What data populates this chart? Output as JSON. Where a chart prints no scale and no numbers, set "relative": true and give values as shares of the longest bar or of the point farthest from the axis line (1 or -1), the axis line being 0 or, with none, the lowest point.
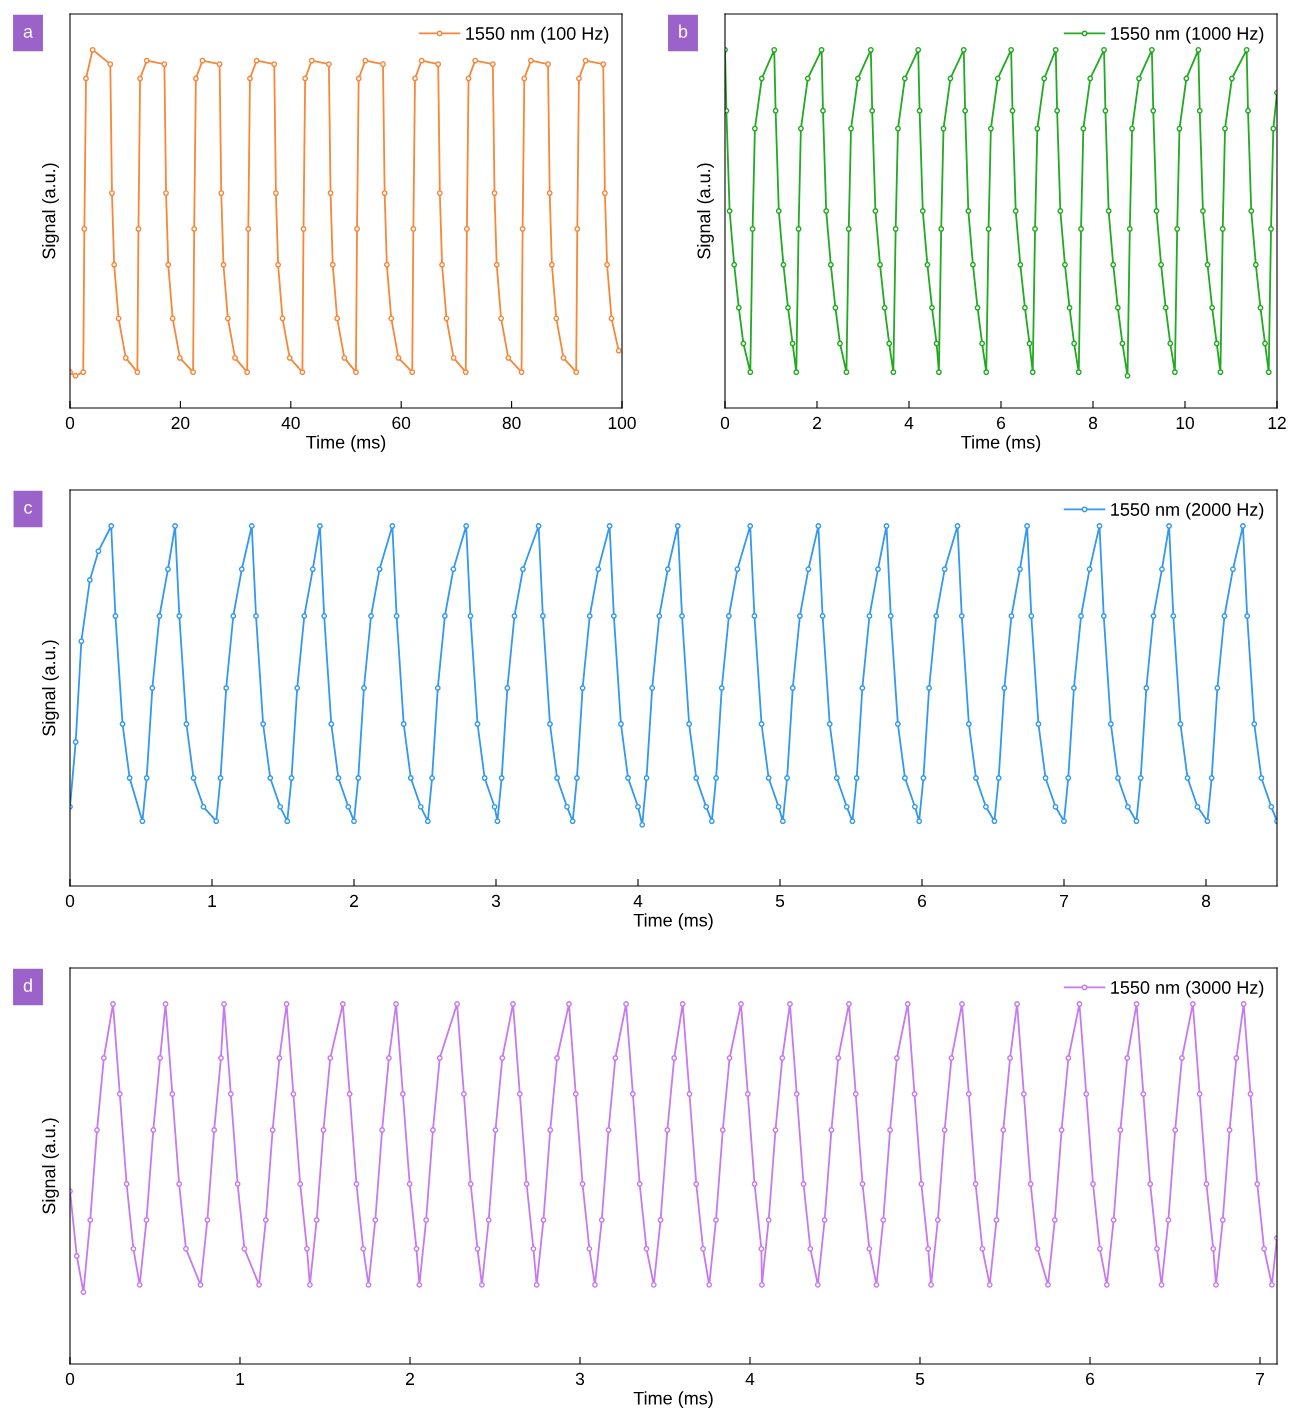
{
  "chart_data": [
    {
      "type": "line",
      "annotations": [
        "a"
      ],
      "xlabel": "Time (ms)",
      "ylabel": "Signal (a.u.)",
      "relative": true,
      "xlim": [
        0,
        100
      ],
      "xticks": [
        0,
        20,
        40,
        60,
        80,
        100
      ],
      "legend": "top right",
      "marker": "circle",
      "line_style": "solid",
      "grid": false,
      "series": [
        {
          "name": "1550 nm (100 Hz)",
          "color": "#f5883a",
          "x": [
            0,
            1,
            2.4,
            2.6,
            2.9,
            4.1,
            7.3,
            7.6,
            8.0,
            8.8,
            10.1,
            12.2,
            12.4,
            12.7,
            13.9,
            17.1,
            17.4,
            17.8,
            18.6,
            19.9,
            22.3,
            22.5,
            22.8,
            24.0,
            27.1,
            27.4,
            27.8,
            28.6,
            29.9,
            32.1,
            32.3,
            32.6,
            33.8,
            37.0,
            37.3,
            37.7,
            38.5,
            39.8,
            42.1,
            42.3,
            42.6,
            43.8,
            46.9,
            47.2,
            47.6,
            48.4,
            49.7,
            51.8,
            52.0,
            52.3,
            53.5,
            56.7,
            57.0,
            57.4,
            58.2,
            59.5,
            62.0,
            62.2,
            62.5,
            63.7,
            66.7,
            67.0,
            67.4,
            68.2,
            69.5,
            71.7,
            71.9,
            72.2,
            73.4,
            76.6,
            76.9,
            77.3,
            78.1,
            79.4,
            81.8,
            82.0,
            82.3,
            83.5,
            86.6,
            86.9,
            87.3,
            88.1,
            89.4,
            91.7,
            91.9,
            92.2,
            93.4,
            96.6,
            96.9,
            97.3,
            98.1,
            99.4
          ],
          "values": [
            0.1,
            0.09,
            0.1,
            0.5,
            0.92,
            1.0,
            0.96,
            0.6,
            0.4,
            0.25,
            0.14,
            0.1,
            0.5,
            0.92,
            0.97,
            0.96,
            0.6,
            0.4,
            0.25,
            0.14,
            0.1,
            0.5,
            0.92,
            0.97,
            0.96,
            0.6,
            0.4,
            0.25,
            0.14,
            0.1,
            0.5,
            0.92,
            0.97,
            0.96,
            0.6,
            0.4,
            0.25,
            0.14,
            0.1,
            0.5,
            0.92,
            0.97,
            0.96,
            0.6,
            0.4,
            0.25,
            0.14,
            0.1,
            0.5,
            0.92,
            0.97,
            0.96,
            0.6,
            0.4,
            0.25,
            0.14,
            0.1,
            0.5,
            0.92,
            0.97,
            0.96,
            0.6,
            0.4,
            0.25,
            0.14,
            0.1,
            0.5,
            0.92,
            0.97,
            0.96,
            0.6,
            0.4,
            0.25,
            0.14,
            0.1,
            0.5,
            0.92,
            0.97,
            0.96,
            0.6,
            0.4,
            0.25,
            0.14,
            0.1,
            0.5,
            0.92,
            0.97,
            0.96,
            0.6,
            0.4,
            0.25,
            0.16
          ]
        }
      ]
    },
    {
      "type": "line",
      "annotations": [
        "b"
      ],
      "xlabel": "Time (ms)",
      "ylabel": "Signal (a.u.)",
      "relative": true,
      "xlim": [
        0,
        12
      ],
      "xticks": [
        0,
        2,
        4,
        6,
        8,
        10,
        12
      ],
      "legend": "top right",
      "marker": "circle",
      "line_style": "solid",
      "grid": false,
      "series": [
        {
          "name": "1550 nm (1000 Hz)",
          "color": "#22aa22",
          "x": [
            0,
            0.03,
            0.1,
            0.2,
            0.3,
            0.4,
            0.55,
            0.6,
            0.65,
            0.8,
            1.07,
            1.1,
            1.17,
            1.27,
            1.37,
            1.47,
            1.55,
            1.6,
            1.65,
            1.8,
            2.1,
            2.13,
            2.2,
            2.3,
            2.4,
            2.5,
            2.64,
            2.69,
            2.74,
            2.89,
            3.17,
            3.2,
            3.27,
            3.37,
            3.47,
            3.57,
            3.66,
            3.71,
            3.76,
            3.91,
            4.2,
            4.23,
            4.3,
            4.4,
            4.5,
            4.6,
            4.65,
            4.7,
            4.75,
            4.9,
            5.19,
            5.22,
            5.29,
            5.39,
            5.49,
            5.59,
            5.68,
            5.73,
            5.78,
            5.93,
            6.22,
            6.25,
            6.32,
            6.42,
            6.52,
            6.62,
            6.69,
            6.74,
            6.79,
            6.94,
            7.19,
            7.22,
            7.29,
            7.39,
            7.49,
            7.59,
            7.69,
            7.74,
            7.79,
            7.94,
            8.24,
            8.27,
            8.34,
            8.44,
            8.54,
            8.64,
            8.75,
            8.8,
            8.85,
            9.0,
            9.28,
            9.31,
            9.38,
            9.48,
            9.58,
            9.68,
            9.78,
            9.83,
            9.88,
            10.03,
            10.29,
            10.32,
            10.39,
            10.49,
            10.59,
            10.69,
            10.77,
            10.82,
            10.87,
            11.02,
            11.34,
            11.37,
            11.44,
            11.54,
            11.64,
            11.74,
            11.82,
            11.87,
            11.92,
            12.0
          ],
          "values": [
            1.0,
            0.83,
            0.55,
            0.4,
            0.28,
            0.18,
            0.1,
            0.5,
            0.78,
            0.92,
            1.0,
            0.83,
            0.55,
            0.4,
            0.28,
            0.18,
            0.1,
            0.5,
            0.78,
            0.92,
            1.0,
            0.83,
            0.55,
            0.4,
            0.28,
            0.18,
            0.1,
            0.5,
            0.78,
            0.92,
            1.0,
            0.83,
            0.55,
            0.4,
            0.28,
            0.18,
            0.1,
            0.5,
            0.78,
            0.92,
            1.0,
            0.83,
            0.55,
            0.4,
            0.28,
            0.18,
            0.1,
            0.5,
            0.78,
            0.92,
            1.0,
            0.83,
            0.55,
            0.4,
            0.28,
            0.18,
            0.1,
            0.5,
            0.78,
            0.92,
            1.0,
            0.83,
            0.55,
            0.4,
            0.28,
            0.18,
            0.1,
            0.5,
            0.78,
            0.92,
            1.0,
            0.83,
            0.55,
            0.4,
            0.28,
            0.18,
            0.1,
            0.5,
            0.78,
            0.92,
            1.0,
            0.83,
            0.55,
            0.4,
            0.28,
            0.18,
            0.09,
            0.5,
            0.78,
            0.92,
            1.0,
            0.83,
            0.55,
            0.4,
            0.28,
            0.18,
            0.1,
            0.5,
            0.78,
            0.92,
            1.0,
            0.83,
            0.55,
            0.4,
            0.28,
            0.18,
            0.1,
            0.5,
            0.78,
            0.92,
            1.0,
            0.83,
            0.55,
            0.4,
            0.28,
            0.18,
            0.1,
            0.5,
            0.78,
            0.88
          ]
        }
      ]
    },
    {
      "type": "line",
      "annotations": [
        "c"
      ],
      "xlabel": "Time (ms)",
      "ylabel": "Signal (a.u.)",
      "relative": true,
      "xlim": [
        0,
        8.5
      ],
      "xticks": [
        0,
        1,
        2,
        3,
        4,
        5,
        6,
        7,
        8
      ],
      "legend": "top right",
      "marker": "circle",
      "line_style": "solid",
      "grid": false,
      "series": [
        {
          "name": "1550 nm (2000 Hz)",
          "color": "#3399ee",
          "x": [
            0,
            0.04,
            0.08,
            0.14,
            0.2,
            0.29,
            0.32,
            0.37,
            0.42,
            0.51,
            0.54,
            0.58,
            0.63,
            0.69,
            0.74,
            0.77,
            0.82,
            0.87,
            0.94,
            1.03,
            1.06,
            1.1,
            1.15,
            1.21,
            1.28,
            1.31,
            1.36,
            1.41,
            1.48,
            1.53,
            1.56,
            1.6,
            1.65,
            1.71,
            1.76,
            1.79,
            1.84,
            1.89,
            1.96,
            2.0,
            2.03,
            2.07,
            2.12,
            2.18,
            2.27,
            2.3,
            2.35,
            2.4,
            2.47,
            2.52,
            2.55,
            2.59,
            2.64,
            2.7,
            2.79,
            2.82,
            2.87,
            2.92,
            2.99,
            3.01,
            3.04,
            3.08,
            3.13,
            3.19,
            3.3,
            3.33,
            3.38,
            3.43,
            3.5,
            3.54,
            3.57,
            3.61,
            3.66,
            3.72,
            3.8,
            3.83,
            3.88,
            3.93,
            4.0,
            4.03,
            4.06,
            4.1,
            4.15,
            4.21,
            4.28,
            4.31,
            4.36,
            4.41,
            4.48,
            4.52,
            4.55,
            4.59,
            4.64,
            4.7,
            4.79,
            4.82,
            4.87,
            4.92,
            4.99,
            5.02,
            5.05,
            5.09,
            5.14,
            5.2,
            5.27,
            5.3,
            5.35,
            5.4,
            5.47,
            5.51,
            5.54,
            5.58,
            5.63,
            5.69,
            5.75,
            5.78,
            5.83,
            5.88,
            5.95,
            5.98,
            6.01,
            6.05,
            6.1,
            6.16,
            6.25,
            6.28,
            6.33,
            6.38,
            6.45,
            6.51,
            6.54,
            6.58,
            6.63,
            6.69,
            6.74,
            6.77,
            6.82,
            6.87,
            6.94,
            7.0,
            7.03,
            7.07,
            7.12,
            7.18,
            7.25,
            7.28,
            7.33,
            7.38,
            7.45,
            7.51,
            7.54,
            7.58,
            7.63,
            7.69,
            7.74,
            7.77,
            7.82,
            7.87,
            7.94,
            8.01,
            8.04,
            8.08,
            8.13,
            8.19,
            8.26,
            8.29,
            8.34,
            8.39,
            8.46,
            8.5
          ],
          "values": [
            0.22,
            0.4,
            0.68,
            0.85,
            0.93,
            1.0,
            0.75,
            0.45,
            0.3,
            0.18,
            0.3,
            0.55,
            0.75,
            0.88,
            1.0,
            0.75,
            0.45,
            0.3,
            0.22,
            0.18,
            0.3,
            0.55,
            0.75,
            0.88,
            1.0,
            0.75,
            0.45,
            0.3,
            0.22,
            0.18,
            0.3,
            0.55,
            0.75,
            0.88,
            1.0,
            0.75,
            0.45,
            0.3,
            0.22,
            0.18,
            0.3,
            0.55,
            0.75,
            0.88,
            1.0,
            0.75,
            0.45,
            0.3,
            0.22,
            0.18,
            0.3,
            0.55,
            0.75,
            0.88,
            1.0,
            0.75,
            0.45,
            0.3,
            0.22,
            0.18,
            0.3,
            0.55,
            0.75,
            0.88,
            1.0,
            0.75,
            0.45,
            0.3,
            0.22,
            0.18,
            0.3,
            0.55,
            0.75,
            0.88,
            1.0,
            0.75,
            0.45,
            0.3,
            0.22,
            0.17,
            0.3,
            0.55,
            0.75,
            0.88,
            1.0,
            0.75,
            0.45,
            0.3,
            0.22,
            0.18,
            0.3,
            0.55,
            0.75,
            0.88,
            1.0,
            0.75,
            0.45,
            0.3,
            0.22,
            0.18,
            0.3,
            0.55,
            0.75,
            0.88,
            1.0,
            0.75,
            0.45,
            0.3,
            0.22,
            0.18,
            0.3,
            0.55,
            0.75,
            0.88,
            1.0,
            0.75,
            0.45,
            0.3,
            0.22,
            0.18,
            0.3,
            0.55,
            0.75,
            0.88,
            1.0,
            0.75,
            0.45,
            0.3,
            0.22,
            0.18,
            0.3,
            0.55,
            0.75,
            0.88,
            1.0,
            0.75,
            0.45,
            0.3,
            0.22,
            0.18,
            0.3,
            0.55,
            0.75,
            0.88,
            1.0,
            0.75,
            0.45,
            0.3,
            0.22,
            0.18,
            0.3,
            0.55,
            0.75,
            0.88,
            1.0,
            0.75,
            0.45,
            0.3,
            0.22,
            0.18,
            0.3,
            0.55,
            0.75,
            0.88,
            1.0,
            0.75,
            0.45,
            0.3,
            0.22,
            0.18
          ]
        }
      ]
    },
    {
      "type": "line",
      "annotations": [
        "d"
      ],
      "xlabel": "Time (ms)",
      "ylabel": "Signal (a.u.)",
      "relative": true,
      "xlim": [
        0,
        7.1
      ],
      "xticks": [
        0,
        1,
        2,
        3,
        4,
        5,
        6,
        7
      ],
      "legend": "top right",
      "marker": "circle",
      "line_style": "solid",
      "grid": false,
      "series": [
        {
          "name": "1550 nm (3000 Hz)",
          "color": "#c77af0",
          "x": [
            0,
            0.04,
            0.079,
            0.119,
            0.159,
            0.199,
            0.253,
            0.293,
            0.333,
            0.373,
            0.41,
            0.45,
            0.49,
            0.53,
            0.562,
            0.602,
            0.642,
            0.682,
            0.768,
            0.808,
            0.848,
            0.888,
            0.906,
            0.946,
            0.986,
            1.026,
            1.112,
            1.152,
            1.192,
            1.232,
            1.274,
            1.314,
            1.354,
            1.394,
            1.411,
            1.451,
            1.491,
            1.531,
            1.605,
            1.645,
            1.685,
            1.725,
            1.756,
            1.796,
            1.836,
            1.876,
            1.918,
            1.958,
            1.998,
            2.038,
            2.055,
            2.095,
            2.135,
            2.175,
            2.277,
            2.317,
            2.357,
            2.397,
            2.423,
            2.463,
            2.503,
            2.543,
            2.606,
            2.646,
            2.686,
            2.726,
            2.745,
            2.785,
            2.825,
            2.865,
            2.935,
            2.975,
            3.015,
            3.055,
            3.088,
            3.128,
            3.168,
            3.208,
            3.271,
            3.311,
            3.351,
            3.391,
            3.434,
            3.474,
            3.514,
            3.554,
            3.604,
            3.644,
            3.684,
            3.724,
            3.76,
            3.8,
            3.84,
            3.88,
            3.947,
            3.987,
            4.027,
            4.067,
            4.07,
            4.11,
            4.15,
            4.19,
            4.235,
            4.275,
            4.315,
            4.355,
            4.399,
            4.439,
            4.479,
            4.519,
            4.582,
            4.622,
            4.662,
            4.702,
            4.744,
            4.784,
            4.824,
            4.864,
            4.928,
            4.968,
            5.008,
            5.048,
            5.065,
            5.105,
            5.145,
            5.185,
            5.247,
            5.287,
            5.327,
            5.367,
            5.41,
            5.45,
            5.49,
            5.53,
            5.571,
            5.611,
            5.651,
            5.691,
            5.753,
            5.793,
            5.833,
            5.873,
            5.938,
            5.978,
            6.018,
            6.058,
            6.099,
            6.139,
            6.179,
            6.219,
            6.274,
            6.314,
            6.354,
            6.394,
            6.421,
            6.461,
            6.501,
            6.541,
            6.605,
            6.645,
            6.685,
            6.725,
            6.741,
            6.781,
            6.821,
            6.861,
            6.904,
            6.944,
            6.984,
            7.024,
            7.07,
            7.1
          ],
          "values": [
            0.48,
            0.3,
            0.2,
            0.4,
            0.65,
            0.85,
            1.0,
            0.75,
            0.5,
            0.32,
            0.22,
            0.4,
            0.65,
            0.85,
            1.0,
            0.75,
            0.5,
            0.32,
            0.22,
            0.4,
            0.65,
            0.85,
            1.0,
            0.75,
            0.5,
            0.32,
            0.22,
            0.4,
            0.65,
            0.85,
            1.0,
            0.75,
            0.5,
            0.32,
            0.22,
            0.4,
            0.65,
            0.85,
            1.0,
            0.75,
            0.5,
            0.32,
            0.22,
            0.4,
            0.65,
            0.85,
            1.0,
            0.75,
            0.5,
            0.32,
            0.22,
            0.4,
            0.65,
            0.85,
            1.0,
            0.75,
            0.5,
            0.32,
            0.22,
            0.4,
            0.65,
            0.85,
            1.0,
            0.75,
            0.5,
            0.32,
            0.22,
            0.4,
            0.65,
            0.85,
            1.0,
            0.75,
            0.5,
            0.32,
            0.22,
            0.4,
            0.65,
            0.85,
            1.0,
            0.75,
            0.5,
            0.32,
            0.22,
            0.4,
            0.65,
            0.85,
            1.0,
            0.75,
            0.5,
            0.32,
            0.22,
            0.4,
            0.65,
            0.85,
            1.0,
            0.75,
            0.5,
            0.32,
            0.22,
            0.4,
            0.65,
            0.85,
            1.0,
            0.75,
            0.5,
            0.32,
            0.22,
            0.4,
            0.65,
            0.85,
            1.0,
            0.75,
            0.5,
            0.32,
            0.22,
            0.4,
            0.65,
            0.85,
            1.0,
            0.75,
            0.5,
            0.32,
            0.22,
            0.4,
            0.65,
            0.85,
            1.0,
            0.75,
            0.5,
            0.32,
            0.22,
            0.4,
            0.65,
            0.85,
            1.0,
            0.75,
            0.5,
            0.32,
            0.22,
            0.4,
            0.65,
            0.85,
            1.0,
            0.75,
            0.5,
            0.32,
            0.22,
            0.4,
            0.65,
            0.85,
            1.0,
            0.75,
            0.5,
            0.32,
            0.22,
            0.4,
            0.65,
            0.85,
            1.0,
            0.75,
            0.5,
            0.32,
            0.22,
            0.4,
            0.65,
            0.85,
            1.0,
            0.75,
            0.5,
            0.32,
            0.22,
            0.35
          ]
        }
      ]
    }
  ]
}
